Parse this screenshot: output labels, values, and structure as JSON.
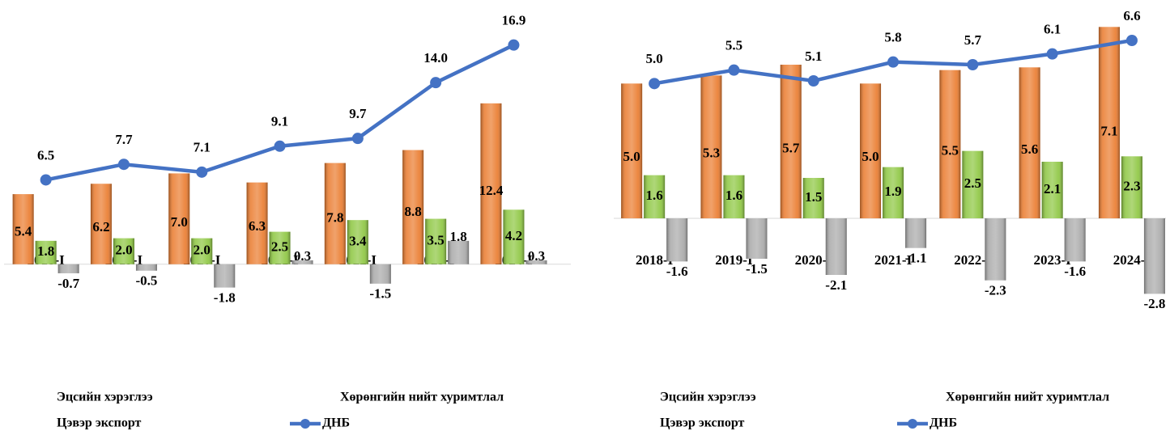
{
  "chart_data": [
    {
      "type": "bar",
      "categories": [
        "2018-I",
        "2019-I",
        "2020-I",
        "2021-I",
        "2022-I",
        "2023-I",
        "2024-I"
      ],
      "ylim": [
        -2.2,
        18.5
      ],
      "series": [
        {
          "name": "Эцсийн хэрэглээ",
          "color": "#ea7a2c",
          "values": [
            5.4,
            6.2,
            7.0,
            6.3,
            7.8,
            8.8,
            12.4
          ],
          "value_labels": [
            "5.4",
            "6.2",
            "7.0",
            "6.3",
            "7.8",
            "8.8",
            "12.4"
          ]
        },
        {
          "name": "Хөрөнгийн нийт хуримтлал",
          "color": "#8cc63f",
          "values": [
            1.8,
            2.0,
            2.0,
            2.5,
            3.4,
            3.5,
            4.2
          ],
          "value_labels": [
            "1.8",
            "2.0",
            "2.0",
            "2.5",
            "3.4",
            "3.5",
            "4.2"
          ]
        },
        {
          "name": "Цэвэр экспорт",
          "color": "#a8a8a8",
          "values": [
            -0.7,
            -0.5,
            -1.8,
            0.3,
            -1.5,
            1.8,
            0.3
          ],
          "value_labels": [
            "-0.7",
            "-0.5",
            "-1.8",
            "0.3",
            "-1.5",
            "1.8",
            "0.3"
          ]
        },
        {
          "name": "ДНБ",
          "type": "line",
          "color": "#4472c4",
          "values": [
            6.5,
            7.7,
            7.1,
            9.1,
            9.7,
            14.0,
            16.9
          ],
          "value_labels": [
            "6.5",
            "7.7",
            "7.1",
            "9.1",
            "9.7",
            "14.0",
            "16.9"
          ]
        }
      ]
    },
    {
      "type": "bar",
      "categories": [
        "2018-I",
        "2019-I",
        "2020-I",
        "2021-I",
        "2022-I",
        "2023-I",
        "2024-I"
      ],
      "ylim": [
        -3.0,
        7.2
      ],
      "series": [
        {
          "name": "Эцсийн хэрэглээ",
          "color": "#ea7a2c",
          "values": [
            5.0,
            5.3,
            5.7,
            5.0,
            5.5,
            5.6,
            7.1
          ],
          "value_labels": [
            "5.0",
            "5.3",
            "5.7",
            "5.0",
            "5.5",
            "5.6",
            "7.1"
          ]
        },
        {
          "name": "Хөрөнгийн нийт хуримтлал",
          "color": "#8cc63f",
          "values": [
            1.6,
            1.6,
            1.5,
            1.9,
            2.5,
            2.1,
            2.3
          ],
          "value_labels": [
            "1.6",
            "1.6",
            "1.5",
            "1.9",
            "2.5",
            "2.1",
            "2.3"
          ]
        },
        {
          "name": "Цэвэр экспорт",
          "color": "#a8a8a8",
          "values": [
            -1.6,
            -1.5,
            -2.1,
            -1.1,
            -2.3,
            -1.6,
            -2.8
          ],
          "value_labels": [
            "-1.6",
            "-1.5",
            "-2.1",
            "-1.1",
            "-2.3",
            "-1.6",
            "-2.8"
          ]
        },
        {
          "name": "ДНБ",
          "type": "line",
          "color": "#4472c4",
          "values": [
            5.0,
            5.5,
            5.1,
            5.8,
            5.7,
            6.1,
            6.6
          ],
          "value_labels": [
            "5.0",
            "5.5",
            "5.1",
            "5.8",
            "5.7",
            "6.1",
            "6.6"
          ]
        }
      ]
    }
  ]
}
